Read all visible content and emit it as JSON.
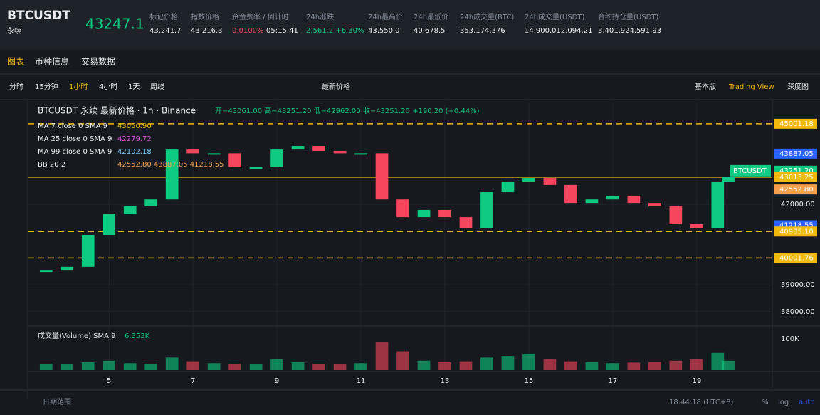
{
  "header": {
    "symbol": "BTCUSDT",
    "sub": "永续",
    "price": "43247.1",
    "stats": [
      {
        "label": "标记价格",
        "value": "43,241.7"
      },
      {
        "label": "指数价格",
        "value": "43,216.3"
      },
      {
        "label": "资金费率 / 倒计时",
        "value": "0.0100%",
        "extra": "05:15:41"
      },
      {
        "label": "24h涨跌",
        "value": "2,561.2 +6.30%"
      },
      {
        "label": "24h最高价",
        "value": "43,550.0"
      },
      {
        "label": "24h最低价",
        "value": "40,678.5"
      },
      {
        "label": "24h成交量(BTC)",
        "value": "353,174.376"
      },
      {
        "label": "24h成交量(USDT)",
        "value": "14,900,012,094.21"
      },
      {
        "label": "合约持仓量(USDT)",
        "value": "3,401,924,591.93"
      }
    ]
  },
  "tabs": [
    "图表",
    "币种信息",
    "交易数据"
  ],
  "toolbar": {
    "intervals": [
      "分时",
      "15分钟",
      "1小时",
      "4小时",
      "1天",
      "周线"
    ],
    "price_type": "最新价格",
    "views": [
      "基本版",
      "Trading View",
      "深度图"
    ]
  },
  "chart_data": {
    "type": "candlestick",
    "title": "BTCUSDT 永续 最新价格 · 1h · Binance",
    "ohlc": "开=43061.00 高=43251.20 低=42962.00 收=43251.20 +190.20 (+0.44%)",
    "indicators": [
      {
        "name": "MA 7 close 0 SMA 9",
        "value": "43050.90",
        "color": "#f0b90b"
      },
      {
        "name": "MA 25 close 0 SMA 9",
        "value": "42279.72",
        "color": "#e052e0"
      },
      {
        "name": "MA 99 close 0 SMA 9",
        "value": "42102.18",
        "color": "#7fd0ff"
      },
      {
        "name": "BB 20 2",
        "value": "42552.80 43887.05 41218.55",
        "color": "#f6a04d"
      }
    ],
    "volume_label": "成交量(Volume) SMA 9",
    "volume_value": "6.353K",
    "x": [
      3.5,
      4,
      4.5,
      5,
      5.5,
      6,
      6.5,
      7,
      7.5,
      8,
      8.5,
      9,
      9.5,
      10,
      10.5,
      11,
      11.5,
      12,
      12.5,
      13,
      13.5,
      14,
      14.5,
      15,
      15.5,
      16,
      16.5,
      17,
      17.5,
      18,
      18.5,
      19,
      19.5,
      19.75
    ],
    "values": [
      39530,
      39670,
      40860,
      41650,
      41920,
      42180,
      44040,
      43900,
      43900,
      43380,
      43380,
      44040,
      44175,
      43990,
      43900,
      43900,
      42180,
      41520,
      41790,
      41520,
      41120,
      42450,
      42850,
      42980,
      42720,
      42050,
      42180,
      42320,
      42050,
      41920,
      41260,
      41120,
      42850,
      43013
    ],
    "volumes": [
      20000,
      18000,
      25000,
      30000,
      22000,
      20000,
      40000,
      28000,
      22000,
      20000,
      18000,
      35000,
      25000,
      20000,
      18000,
      22000,
      90000,
      60000,
      30000,
      25000,
      28000,
      40000,
      45000,
      50000,
      35000,
      28000,
      25000,
      22000,
      24000,
      26000,
      30000,
      35000,
      55000,
      30000
    ],
    "xlim": [
      3.08,
      20.8
    ],
    "xticks": [
      5,
      7,
      9,
      11,
      13,
      15,
      17,
      19
    ],
    "ylim": [
      37544,
      45820
    ],
    "yticks": [
      {
        "value": 38000,
        "label": "38000.00"
      },
      {
        "value": 39000,
        "label": "39000.00"
      },
      {
        "value": 42000,
        "label": "42000.00"
      }
    ],
    "vol_ylim": [
      0,
      136000
    ],
    "vol_yticks": [
      {
        "value": 100000,
        "label": "100K"
      }
    ],
    "levels": [
      {
        "value": 45001.18,
        "label": "45001.18",
        "color": "#f0b90b",
        "dash": true
      },
      {
        "value": 43887.05,
        "label": "43887.05",
        "color": "#2962ff"
      },
      {
        "value": 43251.2,
        "label": "43251.20",
        "color": "#0ecb81",
        "name": "BTCUSDT"
      },
      {
        "value": 43013.25,
        "label": "43013.25",
        "color": "#f0b90b",
        "solid": true
      },
      {
        "value": 42552.8,
        "label": "42552.80",
        "color": "#f6a04d"
      },
      {
        "value": 41218.55,
        "label": "41218.55",
        "color": "#2962ff"
      },
      {
        "value": 40985.1,
        "label": "40985.10",
        "color": "#f0b90b",
        "dash": true
      },
      {
        "value": 40001.76,
        "label": "40001.76",
        "color": "#f0b90b",
        "dash": true
      }
    ]
  },
  "footer": {
    "range": "日期范围",
    "time": "18:44:18 (UTC+8)",
    "options": [
      "%",
      "log",
      "auto"
    ]
  }
}
